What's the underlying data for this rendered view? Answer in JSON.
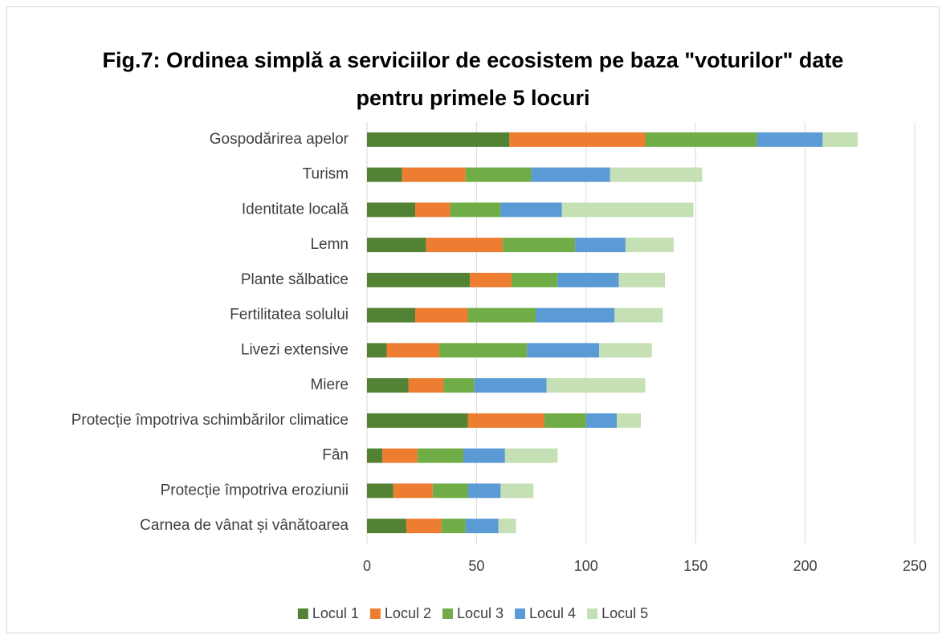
{
  "chart_data": {
    "type": "stacked_bar_horizontal",
    "title": "Fig.7: Ordinea simplă a serviciilor de ecosistem pe baza \"voturilor\" date pentru primele 5 locuri",
    "categories": [
      "Gospodărirea apelor",
      "Turism",
      "Identitate locală",
      "Lemn",
      "Plante sălbatice",
      "Fertilitatea solului",
      "Livezi extensive",
      "Miere",
      "Protecție împotriva schimbărilor climatice",
      "Fân",
      "Protecție împotriva eroziunii",
      "Carnea de vânat și vânătoarea"
    ],
    "series": [
      {
        "name": "Locul 1",
        "color": "#548235",
        "values": [
          65,
          16,
          22,
          27,
          47,
          22,
          9,
          19,
          46,
          7,
          12,
          18
        ]
      },
      {
        "name": "Locul 2",
        "color": "#ed7d31",
        "values": [
          62,
          29,
          16,
          35,
          19,
          24,
          24,
          16,
          35,
          16,
          18,
          16
        ]
      },
      {
        "name": "Locul 3",
        "color": "#70ad47",
        "values": [
          51,
          30,
          23,
          33,
          21,
          31,
          40,
          14,
          19,
          21,
          16,
          11
        ]
      },
      {
        "name": "Locul 4",
        "color": "#5b9bd5",
        "values": [
          30,
          36,
          28,
          23,
          28,
          36,
          33,
          33,
          14,
          19,
          15,
          15
        ]
      },
      {
        "name": "Locul 5",
        "color": "#c5e0b4",
        "values": [
          16,
          42,
          60,
          22,
          21,
          22,
          24,
          45,
          11,
          24,
          15,
          8
        ]
      }
    ],
    "xlim": [
      0,
      250
    ],
    "xticks": [
      0,
      50,
      100,
      150,
      200,
      250
    ],
    "grid": true,
    "legend": "bottom"
  }
}
